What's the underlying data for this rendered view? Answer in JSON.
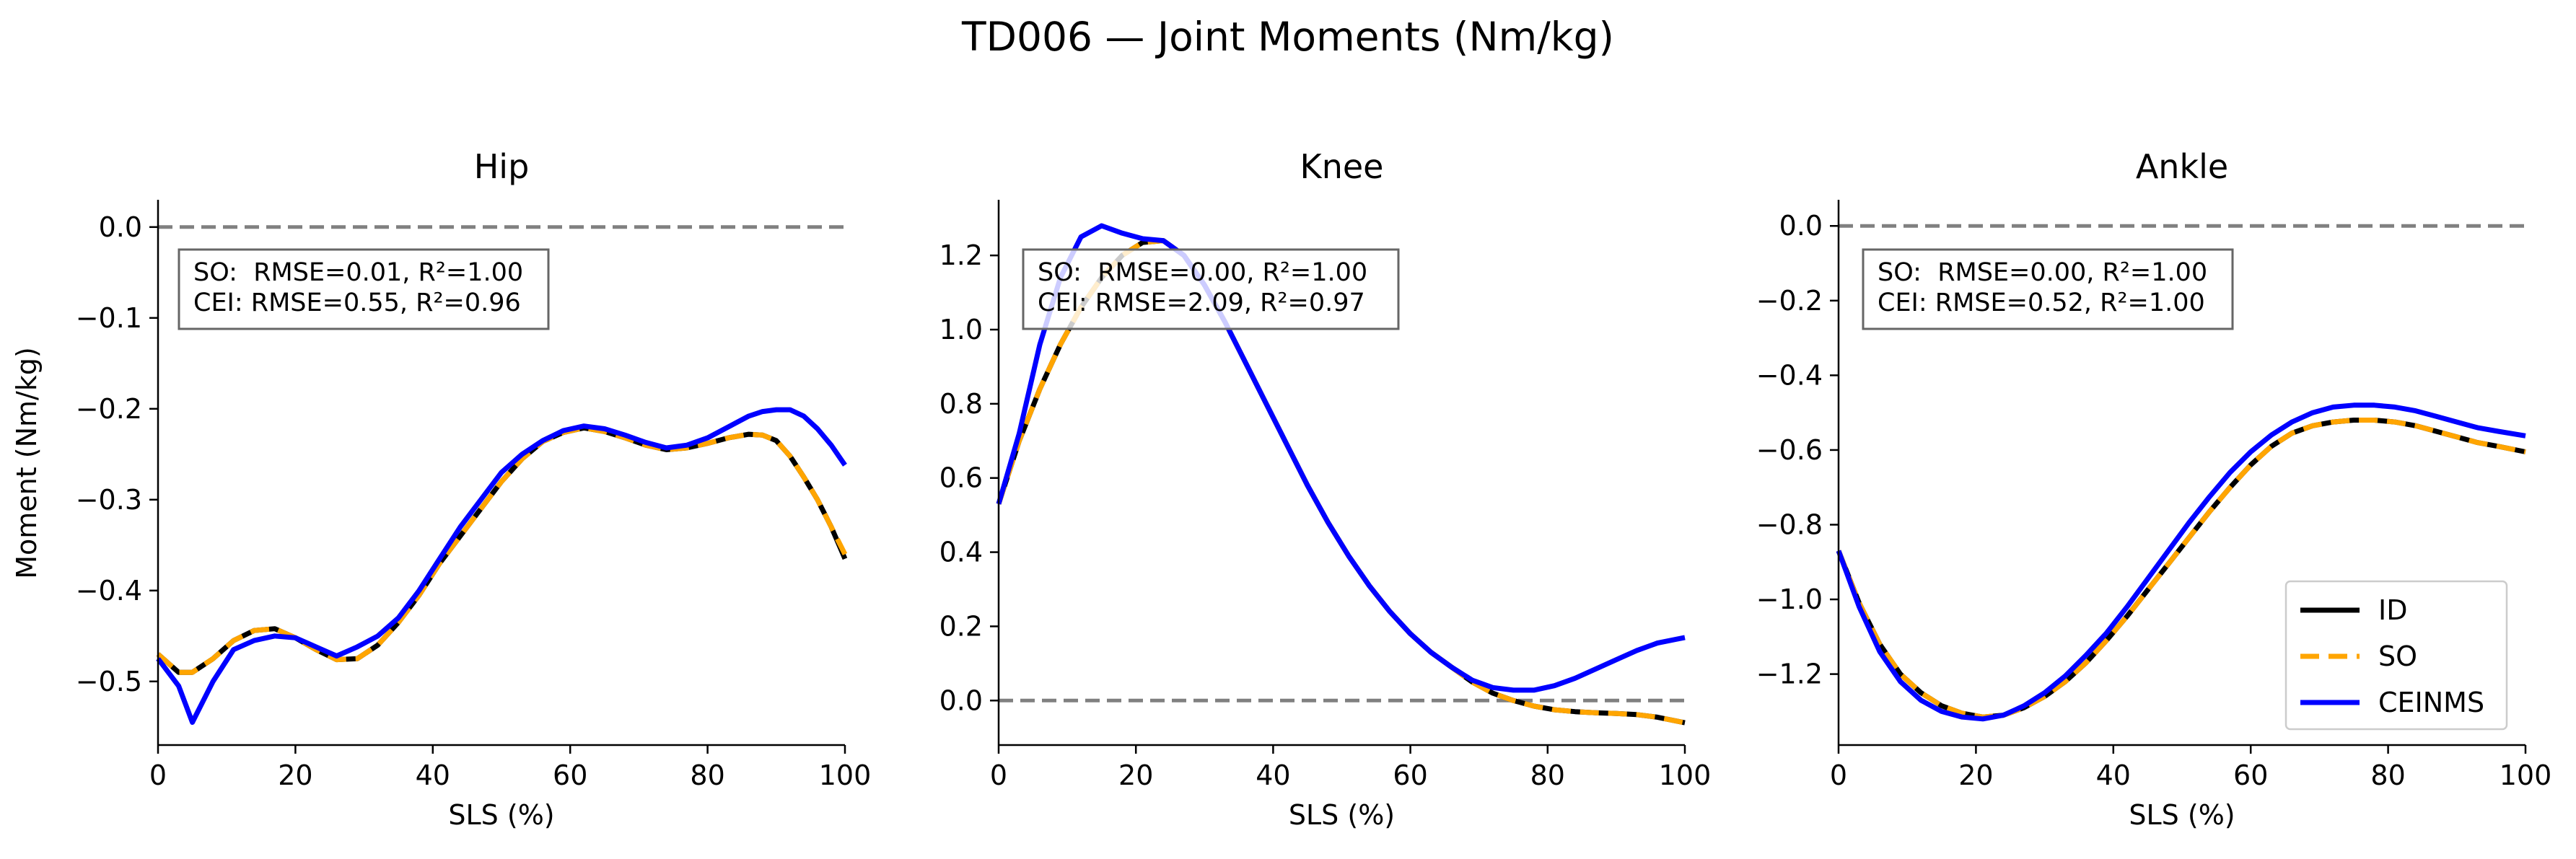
{
  "figure": {
    "title": "TD006 — Joint Moments (Nm/kg)",
    "ylabel": "Moment (Nm/kg)"
  },
  "legend": {
    "entries": [
      {
        "label": "ID",
        "color": "#000000",
        "style": "solid"
      },
      {
        "label": "SO",
        "color": "#FFA500",
        "style": "dashed"
      },
      {
        "label": "CEINMS",
        "color": "#0000FF",
        "style": "solid"
      }
    ],
    "placement": "lower-right of Ankle panel"
  },
  "chart_data": [
    {
      "type": "line",
      "title": "Hip",
      "xlabel": "SLS (%)",
      "ylabel": "Moment (Nm/kg)",
      "xlim": [
        0,
        100
      ],
      "ylim": [
        -0.57,
        0.03
      ],
      "xticks": [
        0,
        20,
        40,
        60,
        80,
        100
      ],
      "yticks": [
        0.0,
        -0.1,
        -0.2,
        -0.3,
        -0.4,
        -0.5
      ],
      "xtick_labels": [
        "0",
        "20",
        "40",
        "60",
        "80",
        "100"
      ],
      "ytick_labels": [
        "0.0",
        "−0.1",
        "−0.2",
        "−0.3",
        "−0.4",
        "−0.5"
      ],
      "ref_line": 0,
      "annotation": [
        "SO:  RMSE=0.01, R²=1.00",
        "CEI: RMSE=0.55, R²=0.96"
      ],
      "x": [
        0,
        3,
        5,
        8,
        11,
        14,
        17,
        20,
        23,
        26,
        29,
        32,
        35,
        38,
        41,
        44,
        47,
        50,
        53,
        56,
        59,
        62,
        65,
        68,
        71,
        74,
        77,
        80,
        83,
        86,
        88,
        90,
        92,
        94,
        96,
        98,
        100
      ],
      "series": [
        {
          "name": "ID",
          "values": [
            -0.47,
            -0.49,
            -0.49,
            -0.475,
            -0.455,
            -0.444,
            -0.442,
            -0.452,
            -0.465,
            -0.476,
            -0.475,
            -0.46,
            -0.435,
            -0.405,
            -0.37,
            -0.34,
            -0.31,
            -0.28,
            -0.255,
            -0.236,
            -0.226,
            -0.221,
            -0.225,
            -0.232,
            -0.24,
            -0.245,
            -0.243,
            -0.238,
            -0.232,
            -0.228,
            -0.229,
            -0.235,
            -0.252,
            -0.275,
            -0.3,
            -0.33,
            -0.365
          ]
        },
        {
          "name": "SO",
          "values": [
            -0.47,
            -0.49,
            -0.49,
            -0.475,
            -0.455,
            -0.444,
            -0.442,
            -0.452,
            -0.465,
            -0.476,
            -0.475,
            -0.46,
            -0.435,
            -0.405,
            -0.37,
            -0.34,
            -0.31,
            -0.28,
            -0.255,
            -0.236,
            -0.226,
            -0.221,
            -0.225,
            -0.232,
            -0.24,
            -0.245,
            -0.243,
            -0.238,
            -0.232,
            -0.228,
            -0.229,
            -0.235,
            -0.252,
            -0.275,
            -0.3,
            -0.33,
            -0.36
          ]
        },
        {
          "name": "CEINMS",
          "values": [
            -0.475,
            -0.505,
            -0.545,
            -0.5,
            -0.465,
            -0.455,
            -0.45,
            -0.452,
            -0.462,
            -0.472,
            -0.462,
            -0.45,
            -0.43,
            -0.4,
            -0.365,
            -0.33,
            -0.3,
            -0.27,
            -0.25,
            -0.235,
            -0.224,
            -0.219,
            -0.222,
            -0.229,
            -0.237,
            -0.243,
            -0.24,
            -0.232,
            -0.22,
            -0.208,
            -0.203,
            -0.201,
            -0.201,
            -0.208,
            -0.222,
            -0.24,
            -0.262
          ]
        }
      ]
    },
    {
      "type": "line",
      "title": "Knee",
      "xlabel": "SLS (%)",
      "xlim": [
        0,
        100
      ],
      "ylim": [
        -0.12,
        1.35
      ],
      "xticks": [
        0,
        20,
        40,
        60,
        80,
        100
      ],
      "yticks": [
        0.0,
        0.2,
        0.4,
        0.6,
        0.8,
        1.0,
        1.2
      ],
      "xtick_labels": [
        "0",
        "20",
        "40",
        "60",
        "80",
        "100"
      ],
      "ytick_labels": [
        "0.0",
        "0.2",
        "0.4",
        "0.6",
        "0.8",
        "1.0",
        "1.2"
      ],
      "ref_line": 0,
      "annotation": [
        "SO:  RMSE=0.00, R²=1.00",
        "CEI: RMSE=2.09, R²=0.97"
      ],
      "x": [
        0,
        3,
        6,
        9,
        12,
        15,
        18,
        21,
        24,
        27,
        30,
        33,
        36,
        39,
        42,
        45,
        48,
        51,
        54,
        57,
        60,
        63,
        66,
        69,
        72,
        75,
        78,
        81,
        84,
        87,
        90,
        93,
        96,
        100
      ],
      "series": [
        {
          "name": "ID",
          "values": [
            0.53,
            0.7,
            0.84,
            0.96,
            1.06,
            1.14,
            1.2,
            1.235,
            1.24,
            1.2,
            1.12,
            1.02,
            0.91,
            0.8,
            0.69,
            0.58,
            0.48,
            0.39,
            0.31,
            0.24,
            0.18,
            0.13,
            0.09,
            0.05,
            0.02,
            0.0,
            -0.015,
            -0.025,
            -0.03,
            -0.033,
            -0.035,
            -0.038,
            -0.045,
            -0.06
          ]
        },
        {
          "name": "SO",
          "values": [
            0.53,
            0.7,
            0.84,
            0.96,
            1.06,
            1.14,
            1.2,
            1.235,
            1.24,
            1.2,
            1.12,
            1.02,
            0.91,
            0.8,
            0.69,
            0.58,
            0.48,
            0.39,
            0.31,
            0.24,
            0.18,
            0.13,
            0.09,
            0.05,
            0.02,
            0.0,
            -0.015,
            -0.025,
            -0.03,
            -0.033,
            -0.035,
            -0.038,
            -0.045,
            -0.06
          ]
        },
        {
          "name": "CEINMS",
          "values": [
            0.53,
            0.72,
            0.96,
            1.14,
            1.25,
            1.28,
            1.26,
            1.245,
            1.24,
            1.2,
            1.12,
            1.02,
            0.91,
            0.8,
            0.69,
            0.58,
            0.48,
            0.39,
            0.31,
            0.24,
            0.18,
            0.13,
            0.09,
            0.055,
            0.035,
            0.028,
            0.028,
            0.04,
            0.06,
            0.085,
            0.11,
            0.135,
            0.155,
            0.17
          ]
        }
      ]
    },
    {
      "type": "line",
      "title": "Ankle",
      "xlabel": "SLS (%)",
      "xlim": [
        0,
        100
      ],
      "ylim": [
        -1.39,
        0.07
      ],
      "xticks": [
        0,
        20,
        40,
        60,
        80,
        100
      ],
      "yticks": [
        0.0,
        -0.2,
        -0.4,
        -0.6,
        -0.8,
        -1.0,
        -1.2
      ],
      "xtick_labels": [
        "0",
        "20",
        "40",
        "60",
        "80",
        "100"
      ],
      "ytick_labels": [
        "0.0",
        "−0.2",
        "−0.4",
        "−0.6",
        "−0.8",
        "−1.0",
        "−1.2"
      ],
      "ref_line": 0,
      "annotation": [
        "SO:  RMSE=0.00, R²=1.00",
        "CEI: RMSE=0.52, R²=1.00"
      ],
      "x": [
        0,
        3,
        6,
        9,
        12,
        15,
        18,
        21,
        24,
        27,
        30,
        33,
        36,
        39,
        42,
        45,
        48,
        51,
        54,
        57,
        60,
        63,
        66,
        69,
        72,
        75,
        78,
        81,
        84,
        87,
        90,
        93,
        96,
        100
      ],
      "series": [
        {
          "name": "ID",
          "values": [
            -0.87,
            -1.01,
            -1.12,
            -1.2,
            -1.25,
            -1.285,
            -1.305,
            -1.315,
            -1.31,
            -1.29,
            -1.26,
            -1.22,
            -1.17,
            -1.11,
            -1.045,
            -0.975,
            -0.905,
            -0.835,
            -0.765,
            -0.7,
            -0.64,
            -0.59,
            -0.555,
            -0.535,
            -0.525,
            -0.52,
            -0.52,
            -0.525,
            -0.535,
            -0.55,
            -0.565,
            -0.58,
            -0.59,
            -0.605
          ]
        },
        {
          "name": "SO",
          "values": [
            -0.87,
            -1.01,
            -1.12,
            -1.2,
            -1.25,
            -1.285,
            -1.305,
            -1.315,
            -1.31,
            -1.29,
            -1.26,
            -1.22,
            -1.17,
            -1.11,
            -1.045,
            -0.975,
            -0.905,
            -0.835,
            -0.765,
            -0.7,
            -0.64,
            -0.59,
            -0.555,
            -0.535,
            -0.525,
            -0.52,
            -0.52,
            -0.525,
            -0.535,
            -0.55,
            -0.565,
            -0.58,
            -0.59,
            -0.605
          ]
        },
        {
          "name": "CEINMS",
          "values": [
            -0.87,
            -1.02,
            -1.14,
            -1.22,
            -1.27,
            -1.3,
            -1.315,
            -1.32,
            -1.31,
            -1.285,
            -1.25,
            -1.205,
            -1.15,
            -1.09,
            -1.02,
            -0.945,
            -0.87,
            -0.795,
            -0.725,
            -0.66,
            -0.605,
            -0.56,
            -0.525,
            -0.5,
            -0.485,
            -0.48,
            -0.48,
            -0.485,
            -0.495,
            -0.51,
            -0.525,
            -0.54,
            -0.55,
            -0.562
          ]
        }
      ]
    }
  ]
}
